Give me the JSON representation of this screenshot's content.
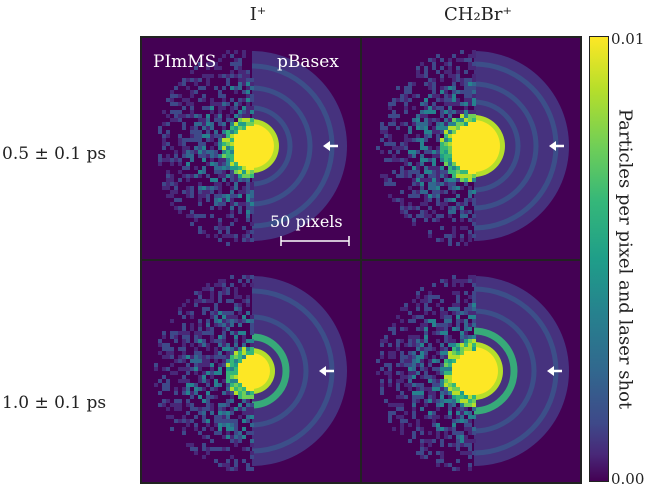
{
  "columns": {
    "iodine": "I⁺",
    "ch2br": "CH₂Br⁺"
  },
  "rows": {
    "top": "0.5 ± 0.1 ps",
    "bottom": "1.0 ± 0.1 ps"
  },
  "panel_labels": {
    "left_half": "PImMS",
    "right_half": "pBasex"
  },
  "scale_bar": "50 pixels",
  "colorbar": {
    "max": "0.01",
    "min": "0.00",
    "label": "Particles per pixel and laser shot",
    "colormap": "viridis"
  },
  "colors": {
    "background": "#440154",
    "ring": "#3b528b",
    "core": "#fde725",
    "arrow": "#ffffff"
  }
}
